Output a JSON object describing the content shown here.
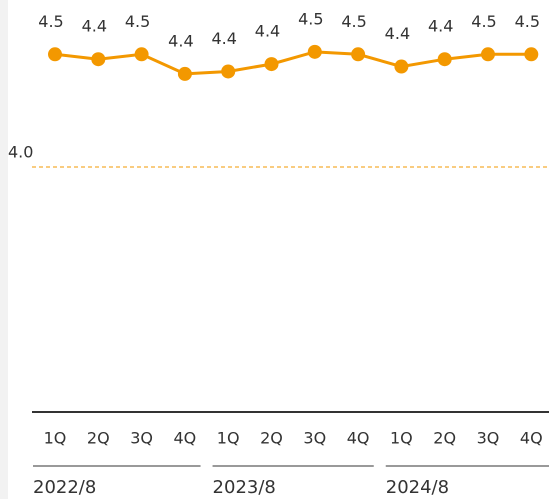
{
  "chart_data": {
    "type": "line",
    "categories": [
      "1Q",
      "2Q",
      "3Q",
      "4Q",
      "1Q",
      "2Q",
      "3Q",
      "4Q",
      "1Q",
      "2Q",
      "3Q",
      "4Q"
    ],
    "groups": [
      {
        "name": "2022/8",
        "count": 4
      },
      {
        "name": "2023/8",
        "count": 4
      },
      {
        "name": "2024/8",
        "count": 4
      }
    ],
    "series": [
      {
        "color": "#f39800",
        "values": [
          4.46,
          4.44,
          4.46,
          4.38,
          4.39,
          4.42,
          4.47,
          4.46,
          4.41,
          4.44,
          4.46,
          4.46
        ],
        "value_labels": [
          "4.5",
          "4.4",
          "4.5",
          "4.4",
          "4.4",
          "4.4",
          "4.5",
          "4.5",
          "4.4",
          "4.4",
          "4.5",
          "4.5"
        ]
      }
    ],
    "ylim": [
      3.0,
      4.7
    ],
    "reference_line": {
      "value": 4,
      "label": "4.0",
      "color": "#f39800"
    }
  }
}
